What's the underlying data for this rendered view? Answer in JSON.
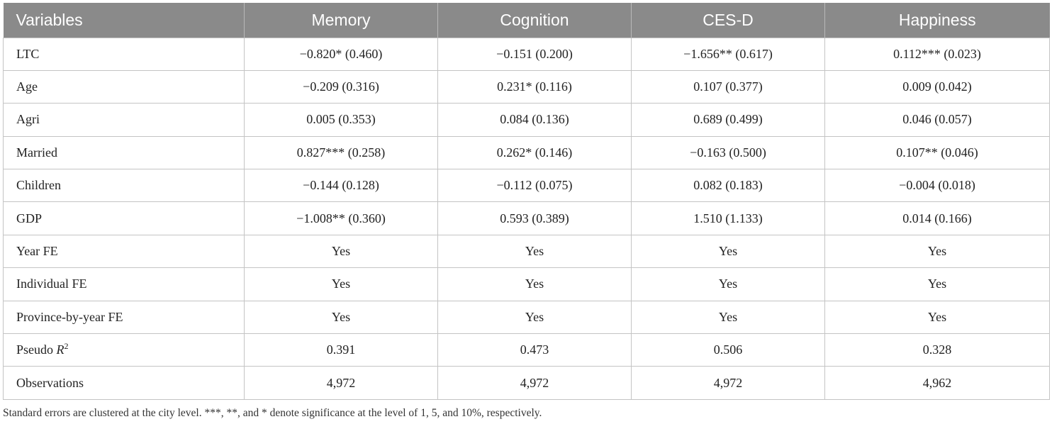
{
  "table": {
    "headers": [
      "Variables",
      "Memory",
      "Cognition",
      "CES-D",
      "Happiness"
    ],
    "rows": [
      {
        "label": "LTC",
        "cells": [
          "−0.820* (0.460)",
          "−0.151 (0.200)",
          "−1.656** (0.617)",
          "0.112*** (0.023)"
        ]
      },
      {
        "label": "Age",
        "cells": [
          "−0.209 (0.316)",
          "0.231* (0.116)",
          "0.107 (0.377)",
          "0.009 (0.042)"
        ]
      },
      {
        "label": "Agri",
        "cells": [
          "0.005 (0.353)",
          "0.084 (0.136)",
          "0.689 (0.499)",
          "0.046 (0.057)"
        ]
      },
      {
        "label": "Married",
        "cells": [
          "0.827*** (0.258)",
          "0.262* (0.146)",
          "−0.163 (0.500)",
          "0.107** (0.046)"
        ]
      },
      {
        "label": "Children",
        "cells": [
          "−0.144 (0.128)",
          "−0.112 (0.075)",
          "0.082 (0.183)",
          "−0.004 (0.018)"
        ]
      },
      {
        "label": "GDP",
        "cells": [
          "−1.008** (0.360)",
          "0.593 (0.389)",
          "1.510 (1.133)",
          "0.014 (0.166)"
        ]
      },
      {
        "label": "Year FE",
        "cells": [
          "Yes",
          "Yes",
          "Yes",
          "Yes"
        ]
      },
      {
        "label": "Individual FE",
        "cells": [
          "Yes",
          "Yes",
          "Yes",
          "Yes"
        ]
      },
      {
        "label": "Province-by-year FE",
        "cells": [
          "Yes",
          "Yes",
          "Yes",
          "Yes"
        ]
      },
      {
        "label_prefix": "Pseudo ",
        "label_italic": "R",
        "label_sup": "2",
        "cells": [
          "0.391",
          "0.473",
          "0.506",
          "0.328"
        ]
      },
      {
        "label": "Observations",
        "cells": [
          "4,972",
          "4,972",
          "4,972",
          "4,962"
        ]
      }
    ]
  },
  "note": "Standard errors are clustered at the city level. ***, **, and * denote significance at the level of 1, 5, and 10%, respectively."
}
